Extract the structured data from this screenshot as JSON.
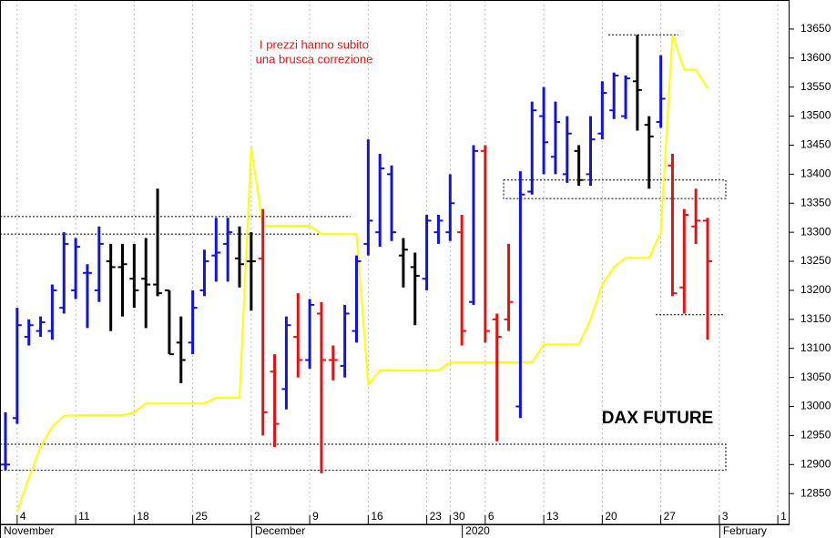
{
  "chart_data": {
    "type": "ohlc",
    "label": "DAX FUTURE",
    "annotations": [
      "I prezzi hanno subito",
      "una brusca correzione"
    ],
    "categories": [
      null,
      "4",
      null,
      null,
      null,
      null,
      "11",
      null,
      null,
      null,
      null,
      "18",
      null,
      null,
      null,
      null,
      "25",
      null,
      null,
      null,
      null,
      "2",
      null,
      null,
      null,
      null,
      "9",
      null,
      null,
      null,
      null,
      "16",
      null,
      null,
      null,
      null,
      "23",
      null,
      "30",
      null,
      null,
      "6",
      null,
      null,
      null,
      null,
      "13",
      null,
      null,
      null,
      null,
      "20",
      null,
      null,
      null,
      null,
      "27",
      null,
      null,
      null,
      null,
      "3",
      null,
      null,
      null,
      null,
      "1"
    ],
    "months": [
      "November",
      "December",
      "2020",
      "February"
    ],
    "open": [
      12900,
      12980,
      13120,
      13130,
      13130,
      13170,
      13200,
      13230,
      13200,
      13250,
      13240,
      13220,
      13220,
      13210,
      13200,
      13110,
      13110,
      13200,
      13260,
      13280,
      13255,
      13250,
      13255,
      13060,
      13030,
      13120,
      13080,
      13160,
      13080,
      13070,
      13130,
      13280,
      13300,
      13400,
      13260,
      13240,
      13220,
      13300,
      13300,
      13300,
      13180,
      13440,
      13150,
      13150,
      13000,
      13370,
      13500,
      13430,
      13400,
      13440,
      13400,
      13470,
      13510,
      13500,
      13560,
      13485,
      13490,
      13415,
      13205,
      13310,
      13320,
      null,
      null,
      null,
      null,
      null,
      null
    ],
    "high": [
      12990,
      13170,
      13150,
      13155,
      13210,
      13300,
      13290,
      13245,
      13310,
      13280,
      13280,
      13280,
      13290,
      13375,
      13200,
      13155,
      13200,
      13270,
      13325,
      13325,
      13310,
      13300,
      13340,
      13090,
      13155,
      13195,
      13185,
      13180,
      13105,
      13175,
      13260,
      13460,
      13435,
      13415,
      13290,
      13265,
      13330,
      13330,
      13400,
      13330,
      13450,
      13450,
      13160,
      13280,
      13405,
      13525,
      13550,
      13525,
      13500,
      13450,
      13500,
      13560,
      13575,
      13570,
      13640,
      13500,
      13605,
      13435,
      13340,
      13375,
      13325,
      null,
      null,
      null,
      null,
      null,
      null
    ],
    "low": [
      12890,
      12970,
      13105,
      13120,
      13115,
      13160,
      13185,
      13135,
      13180,
      13130,
      13155,
      13170,
      13135,
      13190,
      13090,
      13040,
      13090,
      13190,
      13215,
      13215,
      13205,
      13165,
      12950,
      12930,
      12995,
      13050,
      13065,
      12885,
      13045,
      13050,
      13110,
      13260,
      13275,
      13285,
      13205,
      13140,
      13200,
      13280,
      13285,
      13105,
      13175,
      13110,
      12940,
      13130,
      12980,
      13365,
      13400,
      13400,
      13385,
      13380,
      13380,
      13460,
      13495,
      13495,
      13475,
      13375,
      13480,
      13190,
      13160,
      13280,
      13115,
      null,
      null,
      null,
      null,
      null,
      null
    ],
    "close": [
      12900,
      13140,
      13140,
      13145,
      13200,
      13280,
      13275,
      13230,
      13280,
      13240,
      13245,
      13200,
      13210,
      13195,
      13090,
      13080,
      13170,
      13250,
      13265,
      13300,
      13245,
      13250,
      12990,
      12970,
      13140,
      13080,
      13175,
      13080,
      13080,
      13160,
      13250,
      13320,
      13410,
      13300,
      13270,
      13225,
      13320,
      13320,
      13350,
      13130,
      13440,
      13130,
      13120,
      13180,
      13365,
      13510,
      13455,
      13490,
      13470,
      13390,
      13460,
      13540,
      13570,
      13565,
      13545,
      13465,
      13530,
      13195,
      13330,
      13320,
      13250,
      null,
      null,
      null,
      null,
      null,
      null
    ],
    "colors": [
      "#1414d8",
      "#1414d8",
      "#1414d8",
      "#1414d8",
      "#1414d8",
      "#1414d8",
      "#1414d8",
      "#1414d8",
      "#1414d8",
      "#000000",
      "#000000",
      "#000000",
      "#000000",
      "#000000",
      "#000000",
      "#000000",
      "#1414d8",
      "#1414d8",
      "#1414d8",
      "#1414d8",
      "#000000",
      "#000000",
      "#e01414",
      "#e01414",
      "#1414d8",
      "#e01414",
      "#1414d8",
      "#e01414",
      "#e01414",
      "#1414d8",
      "#1414d8",
      "#1414d8",
      "#1414d8",
      "#1414d8",
      "#000000",
      "#000000",
      "#1414d8",
      "#1414d8",
      "#1414d8",
      "#e01414",
      "#1414d8",
      "#e01414",
      "#e01414",
      "#e01414",
      "#1414d8",
      "#1414d8",
      "#1414d8",
      "#1414d8",
      "#1414d8",
      "#000000",
      "#1414d8",
      "#1414d8",
      "#1414d8",
      "#1414d8",
      "#000000",
      "#000000",
      "#1414d8",
      "#e01414",
      "#e01414",
      "#e01414",
      "#e01414",
      null,
      null,
      null,
      null,
      null,
      null
    ],
    "indicator": {
      "color": "#ffff00",
      "values": [
        null,
        12820,
        12877,
        12930,
        12965,
        12984,
        12985,
        12985,
        12985,
        12985,
        12985,
        12990,
        13005,
        13005,
        13005,
        13005,
        13005,
        13005,
        13015,
        13015,
        13015,
        13446,
        13311,
        13311,
        13311,
        13311,
        13311,
        13297,
        13297,
        13297,
        13297,
        13038,
        13062,
        13062,
        13062,
        13062,
        13062,
        13062,
        13076,
        13076,
        13076,
        13076,
        13076,
        13076,
        13076,
        13076,
        13107,
        13107,
        13107,
        13107,
        13150,
        13210,
        13240,
        13256,
        13256,
        13256,
        13300,
        13640,
        13580,
        13580,
        13548,
        null,
        null,
        null,
        null,
        null,
        null
      ]
    },
    "zones": [
      {
        "low": 12890,
        "high": 12935
      },
      {
        "low": 13358,
        "high": 13390
      }
    ],
    "levels": [
      13327,
      13297,
      13640,
      13158
    ],
    "ylim": [
      12797,
      13700
    ],
    "yticks": [
      12850,
      12900,
      12950,
      13000,
      13050,
      13100,
      13150,
      13200,
      13250,
      13300,
      13350,
      13400,
      13450,
      13500,
      13550,
      13600,
      13650
    ],
    "grid": true
  }
}
